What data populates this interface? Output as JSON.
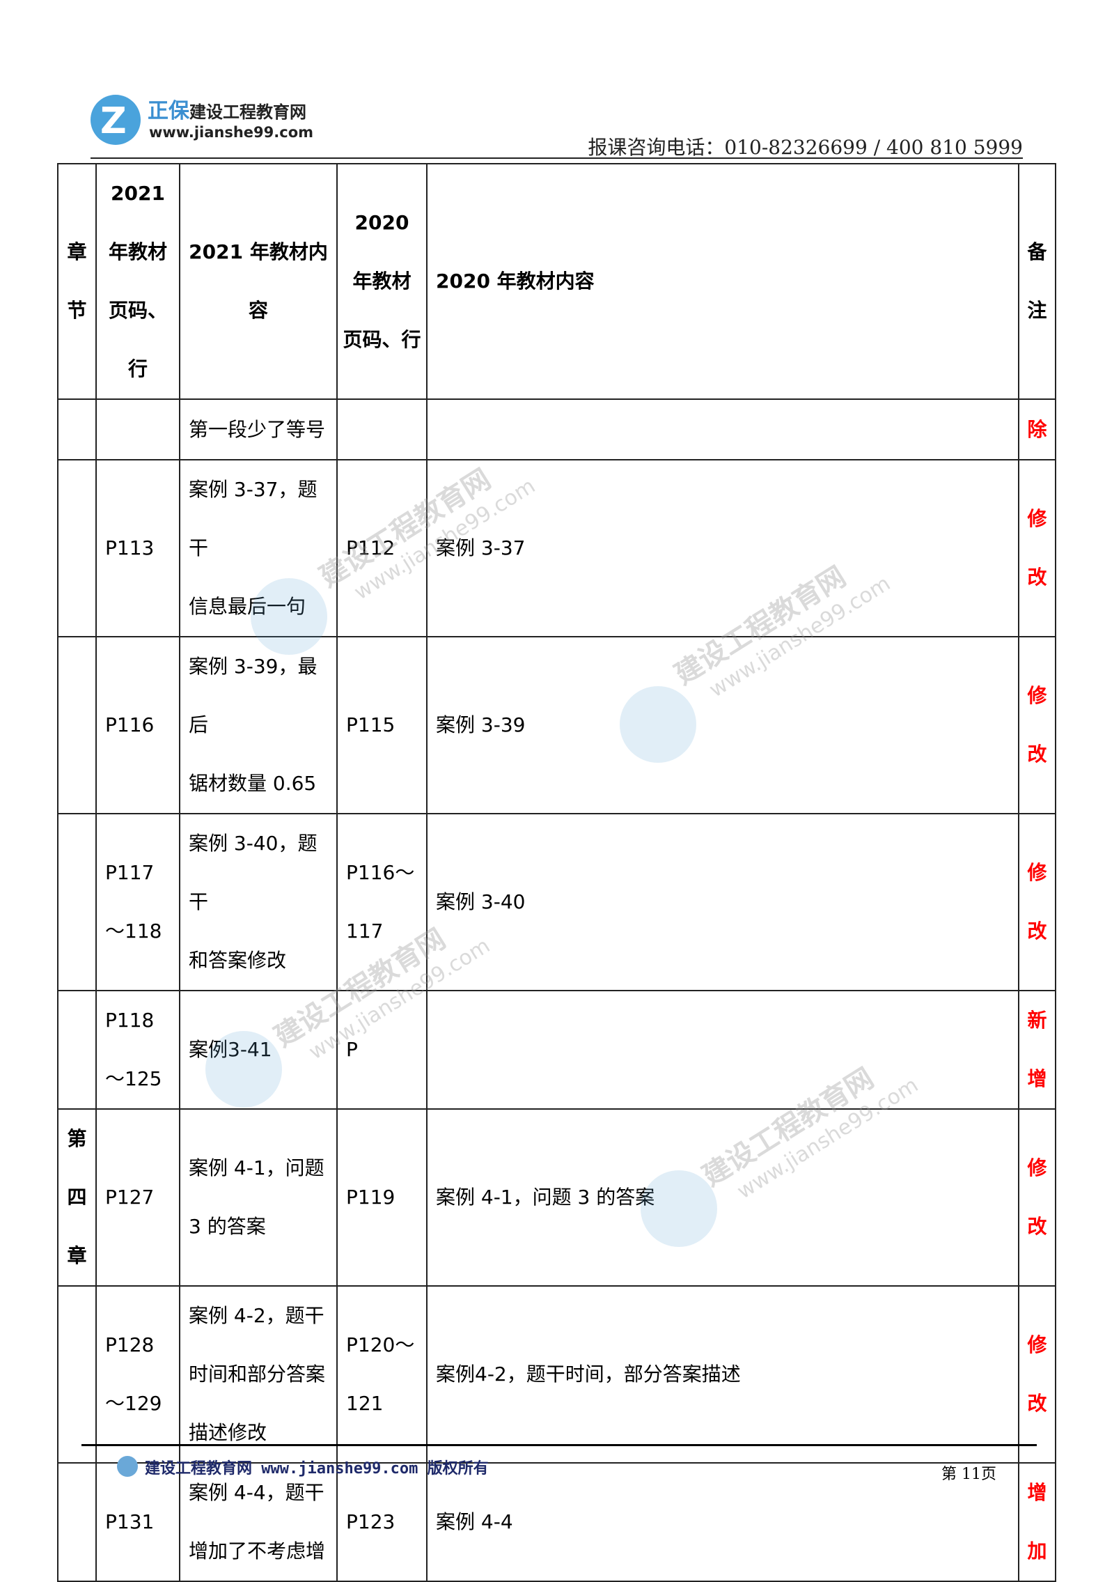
{
  "header": {
    "logo_brand": "正保",
    "logo_name": "建设工程教育网",
    "logo_url": "www.jianshe99.com",
    "phone": "报课咨询电话：010-82326699 / 400 810 5999"
  },
  "table": {
    "columns": [
      "章\n节",
      "2021\n年教材\n页码、\n行",
      "2021 年教材内\n容",
      "2020\n年教材\n页码、行",
      "2020 年教材内容",
      "备\n注"
    ],
    "rows": [
      {
        "chapter": "",
        "p2021": "",
        "c2021": "第一段少了等号",
        "p2020": "",
        "c2020": "",
        "note": "除"
      },
      {
        "chapter": "",
        "p2021": "P113",
        "c2021": "案例 3-37，题干\n信息最后一句",
        "p2020": "P112",
        "c2020": "案例 3-37",
        "note": "修\n改"
      },
      {
        "chapter": "",
        "p2021": "P116",
        "c2021": "案例 3-39，最后\n锯材数量 0.65",
        "p2020": "P115",
        "c2020": "案例 3-39",
        "note": "修\n改"
      },
      {
        "chapter": "",
        "p2021": "P117\n～118",
        "c2021": "案例 3-40，题干\n和答案修改",
        "p2020": "P116～\n117",
        "c2020": "案例 3-40",
        "note": "修\n改"
      },
      {
        "chapter": "",
        "p2021": "P118\n～125",
        "c2021": "案例3-41",
        "p2020": "P",
        "c2020": "",
        "note": "新\n增"
      },
      {
        "chapter": "第\n四\n章",
        "p2021": "P127",
        "c2021": "案例 4-1，问题\n3 的答案",
        "p2020": "P119",
        "c2020": "案例 4-1，问题 3 的答案",
        "note": "修\n改"
      },
      {
        "chapter": "",
        "p2021": "P128\n～129",
        "c2021": "案例 4-2，题干\n时间和部分答案\n描述修改",
        "p2020": "P120～\n121",
        "c2020": "案例4-2，题干时间，部分答案描述",
        "note": "修\n改"
      },
      {
        "chapter": "",
        "p2021": "P131",
        "c2021": "案例 4-4，题干\n增加了不考虑增",
        "p2020": "P123",
        "c2020": "案例 4-4",
        "note": "增\n加"
      }
    ]
  },
  "watermark": {
    "line1": "建设工程教育网",
    "line2": "www.jianshe99.com"
  },
  "footer": {
    "left": "建设工程教育网 www.jianshe99.com 版权所有",
    "page": "第 11页"
  },
  "colors": {
    "note_red": "#ff0000",
    "brand_blue": "#3b8fd1"
  }
}
